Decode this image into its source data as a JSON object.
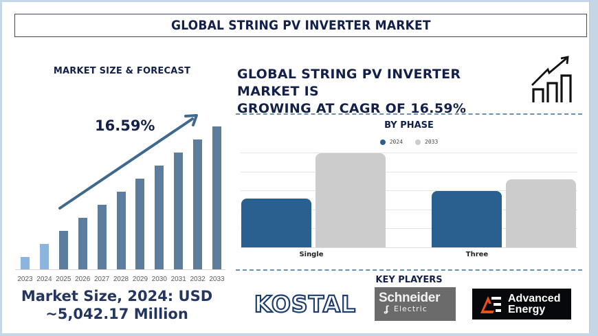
{
  "title": "GLOBAL STRING PV INVERTER MARKET",
  "left_panel": {
    "heading": "MARKET SIZE & FORECAST",
    "cagr_label": "16.59%",
    "market_size_line1": "Market Size, 2024: USD",
    "market_size_line2": "~5,042.17 Million"
  },
  "right_panel": {
    "heading_line1": "GLOBAL STRING PV INVERTER MARKET IS",
    "heading_line2": "GROWING AT CAGR OF 16.59%",
    "icon": "growth-chart-icon",
    "phase_title": "BY PHASE",
    "legend": [
      {
        "label": "2024",
        "color": "#2a6090"
      },
      {
        "label": "2033",
        "color": "#cccccc"
      }
    ],
    "key_players_title": "KEY PLAYERS",
    "key_players": [
      {
        "name": "KOSTAL"
      },
      {
        "name_line1": "Schneider",
        "name_line2": "Electric"
      },
      {
        "name_line1": "Advanced",
        "name_line2": "Energy"
      }
    ]
  },
  "colors": {
    "navy_text": "#13204a",
    "bar_history": "#8db4dc",
    "bar_forecast": "#5c7d9e",
    "arrow": "#3f6a8e",
    "bar_2024": "#2a6090",
    "bar_2033": "#cccccc",
    "dash_line": "#6d8fae"
  },
  "chart_data": [
    {
      "type": "bar",
      "title": "MARKET SIZE & FORECAST",
      "categories": [
        "2023",
        "2024",
        "2025",
        "2026",
        "2027",
        "2028",
        "2029",
        "2030",
        "2031",
        "2032",
        "2033"
      ],
      "values": [
        18,
        37,
        56,
        75,
        94,
        113,
        132,
        151,
        170,
        189,
        208
      ],
      "value_units": "relative bar height (no axis shown)",
      "annotations": [
        "16.59%",
        "upward trend arrow"
      ],
      "xlabel": "",
      "ylabel": "",
      "grid": false,
      "legend": false
    },
    {
      "type": "bar",
      "title": "BY PHASE",
      "categories": [
        "Single",
        "Three"
      ],
      "series": [
        {
          "name": "2024",
          "values": [
            71,
            82
          ]
        },
        {
          "name": "2033",
          "values": [
            137,
            99
          ]
        }
      ],
      "value_units": "relative bar height (no axis labels shown)",
      "ylim": [
        0,
        138
      ],
      "grid": true,
      "legend_position": "top"
    }
  ]
}
